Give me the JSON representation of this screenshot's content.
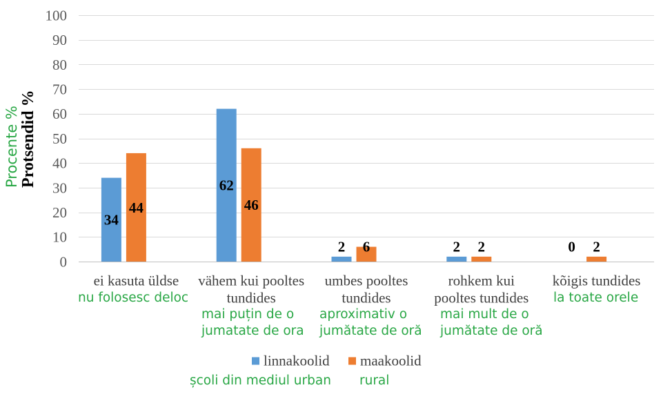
{
  "chart_data": {
    "type": "bar",
    "categories": [
      "ei kasuta üldse",
      "vähem kui pooltes tundides",
      "umbes pooltes tundides",
      "rohkem kui pooltes tundides",
      "kõigis tundides"
    ],
    "series": [
      {
        "name": "linnakoolid",
        "values": [
          34,
          62,
          2,
          2,
          0
        ],
        "color": "#5b9bd5"
      },
      {
        "name": "maakoolid",
        "values": [
          44,
          46,
          6,
          2,
          2
        ],
        "color": "#ed7d31"
      }
    ],
    "ylabel": "Protsendid %",
    "ylim": [
      0,
      100
    ],
    "yticks": [
      0,
      10,
      20,
      30,
      40,
      50,
      60,
      70,
      80,
      90,
      100
    ],
    "grid": true,
    "data_labels": true,
    "legend": "bottom"
  },
  "translations": {
    "ylabel": "Procente %",
    "categories": [
      [
        "nu folosesc deloc"
      ],
      [
        "mai puțin de o",
        "jumatate de ora"
      ],
      [
        "aproximativ o",
        "jumătate de oră"
      ],
      [
        "mai mult de o",
        "jumătate de oră"
      ],
      [
        "la toate orele"
      ]
    ],
    "legend": [
      "școli din mediul urban",
      "rural"
    ],
    "color": "#29a745"
  }
}
